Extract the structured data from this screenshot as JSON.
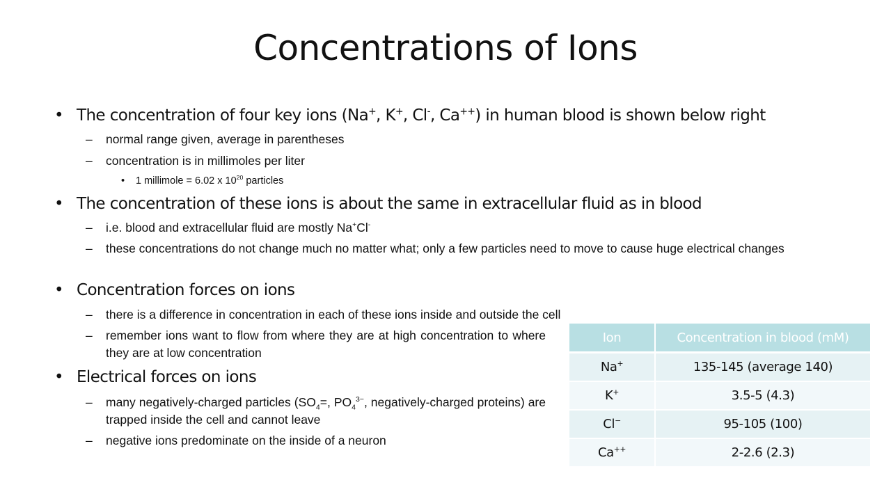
{
  "title": "Concentrations of Ions",
  "bullets": [
    {
      "level": 1,
      "segments": [
        {
          "t": "The concentration of four key ions (Na"
        },
        {
          "t": "+",
          "sup": true
        },
        {
          "t": ", K"
        },
        {
          "t": "+",
          "sup": true
        },
        {
          "t": ", Cl"
        },
        {
          "t": "-",
          "sup": true
        },
        {
          "t": ", Ca"
        },
        {
          "t": "++",
          "sup": true
        },
        {
          "t": ") in human blood is shown below right"
        }
      ]
    },
    {
      "level": 2,
      "segments": [
        {
          "t": "normal range given, average in parentheses"
        }
      ]
    },
    {
      "level": 2,
      "segments": [
        {
          "t": "concentration is in millimoles per liter"
        }
      ]
    },
    {
      "level": 3,
      "segments": [
        {
          "t": "1 millimole = 6.02 x 10"
        },
        {
          "t": "20",
          "sup": true
        },
        {
          "t": " particles"
        }
      ]
    },
    {
      "level": 1,
      "segments": [
        {
          "t": "The concentration of these ions is about the same in extracellular fluid as in blood"
        }
      ]
    },
    {
      "level": 2,
      "segments": [
        {
          "t": "i.e. blood and extracellular fluid are mostly Na"
        },
        {
          "t": "+",
          "sup": true
        },
        {
          "t": "Cl"
        },
        {
          "t": "-",
          "sup": true
        }
      ]
    },
    {
      "level": 2,
      "segments": [
        {
          "t": "these concentrations do not change much no matter what; only a few particles need to move to cause huge electrical changes"
        }
      ]
    },
    {
      "level": 1,
      "segments": [
        {
          "t": "Concentration forces on ions"
        }
      ]
    },
    {
      "level": 2,
      "segments": [
        {
          "t": "there is a difference in concentration in each of these ions inside and outside the cell"
        }
      ]
    },
    {
      "level": 2,
      "narrow": true,
      "segments": [
        {
          "t": "remember ions want to flow from where they are at high concentration to where they are at low concentration"
        }
      ]
    },
    {
      "level": 1,
      "segments": [
        {
          "t": "Electrical forces on ions"
        }
      ]
    },
    {
      "level": 2,
      "narrow": true,
      "segments": [
        {
          "t": "many negatively-charged particles (SO"
        },
        {
          "t": "4",
          "sub": true
        },
        {
          "t": "="
        },
        {
          "t": ", PO"
        },
        {
          "t": "4",
          "sub": true
        },
        {
          "t": "3−",
          "sup": true
        },
        {
          "t": ", negatively-charged proteins) are trapped inside the cell and cannot leave"
        }
      ]
    },
    {
      "level": 2,
      "segments": [
        {
          "t": "negative ions predominate on the inside of a neuron"
        }
      ]
    }
  ],
  "table": {
    "headers": [
      "Ion",
      "Concentration in blood (mM)"
    ],
    "rows": [
      {
        "ion": "Na",
        "charge": "+",
        "value": "135-145 (average 140)"
      },
      {
        "ion": "K",
        "charge": "+",
        "value": "3.5-5 (4.3)"
      },
      {
        "ion": "Cl",
        "charge": "−",
        "value": "95-105 (100)"
      },
      {
        "ion": "Ca",
        "charge": "++",
        "value": "2-2.6 (2.3)"
      }
    ]
  },
  "colors": {
    "header": "#b8dfe3",
    "row_odd": "#e6f2f4",
    "row_even": "#f2f8fa"
  }
}
